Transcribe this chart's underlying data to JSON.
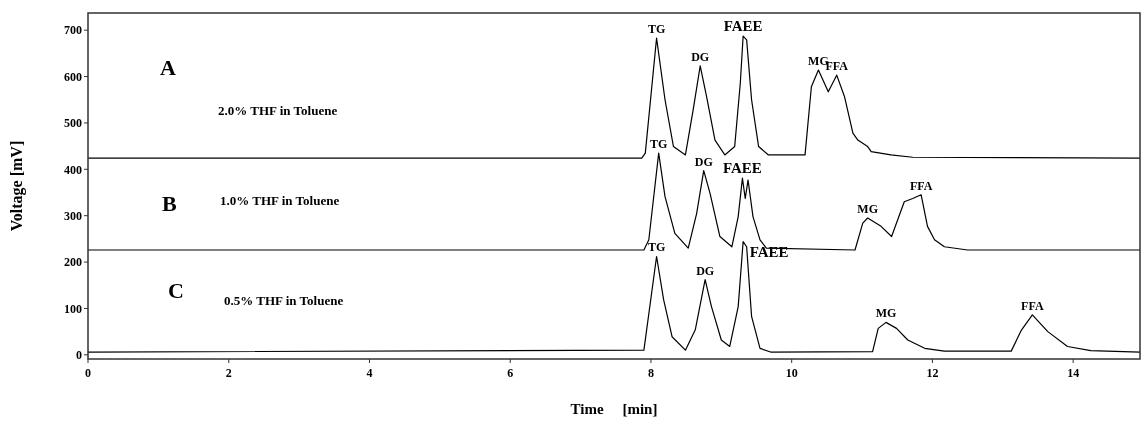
{
  "chart_data": {
    "type": "line",
    "xlabel": "Time     [min]",
    "ylabel": "Voltage [mV]",
    "xlim": [
      0,
      14.95
    ],
    "ylim": [
      -9,
      737
    ],
    "xticks": [
      0,
      2,
      4,
      6,
      8,
      10,
      12,
      14
    ],
    "yticks": [
      0,
      100,
      200,
      300,
      400,
      500,
      600,
      700
    ],
    "grid": false,
    "series": [
      {
        "color": "#000000",
        "x": [
          0,
          7.87,
          7.92,
          8.08,
          8.2,
          8.32,
          8.49,
          8.6,
          8.7,
          8.79,
          8.91,
          9.05,
          9.19,
          9.27,
          9.31,
          9.36,
          9.43,
          9.53,
          9.67,
          10.19,
          10.28,
          10.38,
          10.52,
          10.64,
          10.75,
          10.87,
          10.94,
          11.08,
          11.13,
          11.41,
          11.72,
          14.95
        ],
        "values": [
          424,
          424,
          435,
          683,
          550,
          449,
          431,
          528,
          623,
          557,
          463,
          431,
          449,
          586,
          687,
          679,
          550,
          449,
          431,
          431,
          578,
          614,
          567,
          603,
          557,
          478,
          463,
          449,
          438,
          431,
          426,
          424
        ]
      },
      {
        "color": "#000000",
        "x": [
          0,
          7.9,
          7.97,
          8.11,
          8.2,
          8.34,
          8.53,
          8.65,
          8.75,
          8.84,
          8.98,
          9.15,
          9.24,
          9.3,
          9.34,
          9.38,
          9.45,
          9.55,
          9.64,
          10.9,
          11.01,
          11.08,
          11.27,
          11.42,
          11.6,
          11.72,
          11.84,
          11.93,
          12.03,
          12.17,
          12.5,
          14.95
        ],
        "values": [
          226,
          226,
          248,
          435,
          341,
          262,
          230,
          305,
          397,
          348,
          255,
          233,
          298,
          381,
          337,
          377,
          298,
          248,
          230,
          226,
          284,
          295,
          277,
          255,
          330,
          337,
          345,
          277,
          248,
          233,
          226,
          226
        ]
      },
      {
        "color": "#000000",
        "x": [
          0,
          7.9,
          8.08,
          8.18,
          8.3,
          8.49,
          8.63,
          8.77,
          8.86,
          9,
          9.12,
          9.24,
          9.31,
          9.36,
          9.43,
          9.55,
          9.7,
          11.15,
          11.23,
          11.34,
          11.49,
          11.65,
          11.89,
          12.17,
          13.12,
          13.26,
          13.42,
          13.64,
          13.92,
          14.25,
          14.95
        ],
        "values": [
          6,
          10,
          212,
          119,
          39,
          10,
          54,
          162,
          104,
          32,
          18,
          104,
          244,
          233,
          83,
          14,
          6,
          7,
          57,
          70,
          57,
          32,
          14,
          8,
          8,
          52,
          86,
          50,
          18,
          9,
          6
        ]
      }
    ],
    "annotations": [
      "A",
      "2.0% THF in Toluene",
      "B",
      "1.0% THF in Toluene",
      "C",
      "0.5% THF in Toluene",
      {
        "text": "TG",
        "x": 8.08,
        "y": 683
      },
      {
        "text": "DG",
        "x": 8.7,
        "y": 623
      },
      {
        "text": "FAEE",
        "x": 9.31,
        "y": 687
      },
      {
        "text": "MG",
        "x": 10.38,
        "y": 614
      },
      {
        "text": "FFA",
        "x": 10.64,
        "y": 603
      },
      {
        "text": "TG",
        "x": 8.11,
        "y": 435
      },
      {
        "text": "DG",
        "x": 8.75,
        "y": 397
      },
      {
        "text": "FAEE",
        "x": 9.3,
        "y": 381
      },
      {
        "text": "MG",
        "x": 11.08,
        "y": 295
      },
      {
        "text": "FFA",
        "x": 11.84,
        "y": 345
      },
      {
        "text": "TG",
        "x": 8.08,
        "y": 212
      },
      {
        "text": "DG",
        "x": 8.77,
        "y": 162
      },
      {
        "text": "FAEE",
        "x": 9.31,
        "y": 244
      },
      {
        "text": "MG",
        "x": 11.34,
        "y": 70
      },
      {
        "text": "FFA",
        "x": 13.42,
        "y": 86
      }
    ]
  }
}
